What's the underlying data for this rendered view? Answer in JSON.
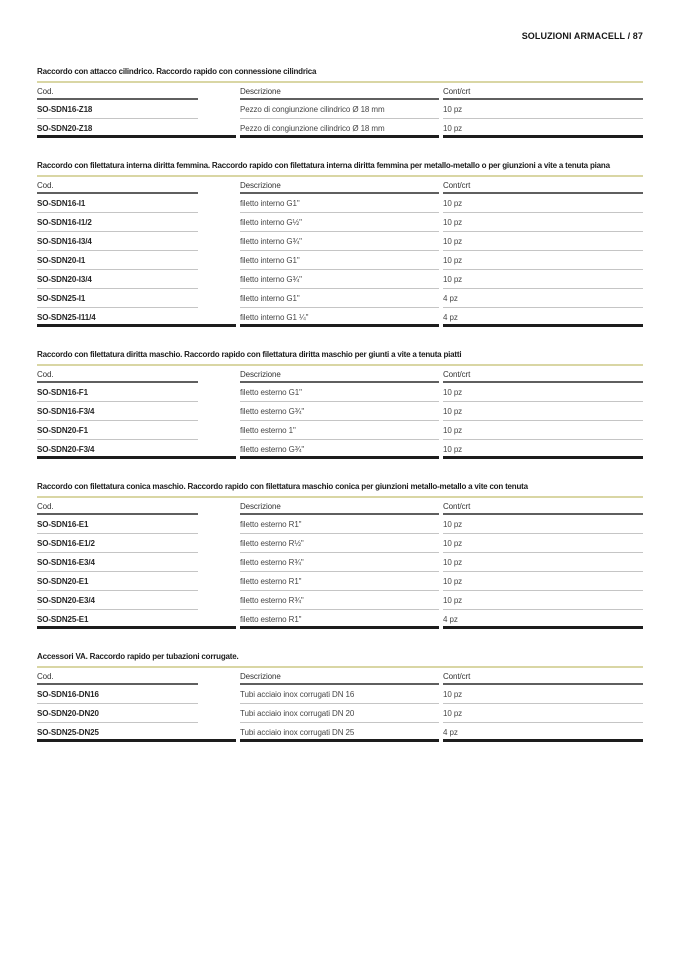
{
  "page": {
    "header": "SOLUZIONI ARMACELL / 87"
  },
  "table_headers": {
    "cod": "Cod.",
    "desc": "Descrizione",
    "qty": "Cont/crt"
  },
  "colors": {
    "accent_line": "#d9d6a4",
    "header_rule": "#5f5f5f",
    "row_rule": "#c5c5c5",
    "table_bottom_rule": "#1d1d1d",
    "text": "#1e1e1e"
  },
  "sections": [
    {
      "title": "Raccordo con attacco cilindrico. Raccordo rapido con connessione cilindrica",
      "rows": [
        {
          "cod": "SO-SDN16-Z18",
          "desc": "Pezzo di congiunzione cilindrico Ø 18 mm",
          "qty": "10 pz"
        },
        {
          "cod": "SO-SDN20-Z18",
          "desc": "Pezzo di congiunzione cilindrico Ø 18 mm",
          "qty": "10 pz"
        }
      ]
    },
    {
      "title": "Raccordo con filettatura interna diritta femmina. Raccordo rapido con filettatura interna diritta femmina per metallo-metallo o per giunzioni a vite a tenuta piana",
      "rows": [
        {
          "cod": "SO-SDN16-I1",
          "desc": "filetto interno G1\"",
          "qty": "10 pz"
        },
        {
          "cod": "SO-SDN16-I1/2",
          "desc": "filetto interno G½\"",
          "qty": "10 pz"
        },
        {
          "cod": "SO-SDN16-I3/4",
          "desc": "filetto interno G¾\"",
          "qty": "10 pz"
        },
        {
          "cod": "SO-SDN20-I1",
          "desc": "filetto interno G1\"",
          "qty": "10 pz"
        },
        {
          "cod": "SO-SDN20-I3/4",
          "desc": "filetto interno G¾\"",
          "qty": "10 pz"
        },
        {
          "cod": "SO-SDN25-I1",
          "desc": "filetto interno G1\"",
          "qty": "4 pz"
        },
        {
          "cod": "SO-SDN25-I11/4",
          "desc": "filetto interno G1 ¼\"",
          "qty": "4 pz"
        }
      ]
    },
    {
      "title": "Raccordo con filettatura diritta maschio. Raccordo rapido con filettatura diritta maschio per giunti a vite a tenuta piatti",
      "rows": [
        {
          "cod": "SO-SDN16-F1",
          "desc": "filetto esterno G1\"",
          "qty": "10 pz"
        },
        {
          "cod": "SO-SDN16-F3/4",
          "desc": "filetto esterno G¾\"",
          "qty": "10 pz"
        },
        {
          "cod": "SO-SDN20-F1",
          "desc": "filetto esterno 1\"",
          "qty": "10 pz"
        },
        {
          "cod": "SO-SDN20-F3/4",
          "desc": "filetto esterno G¾\"",
          "qty": "10 pz"
        }
      ]
    },
    {
      "title": "Raccordo con filettatura conica maschio. Raccordo rapido con filettatura maschio conica per giunzioni metallo-metallo a vite con tenuta",
      "rows": [
        {
          "cod": "SO-SDN16-E1",
          "desc": "filetto esterno R1\"",
          "qty": "10 pz"
        },
        {
          "cod": "SO-SDN16-E1/2",
          "desc": "filetto esterno R½\"",
          "qty": "10 pz"
        },
        {
          "cod": "SO-SDN16-E3/4",
          "desc": "filetto esterno R¾\"",
          "qty": "10 pz"
        },
        {
          "cod": "SO-SDN20-E1",
          "desc": "filetto esterno R1\"",
          "qty": "10 pz"
        },
        {
          "cod": "SO-SDN20-E3/4",
          "desc": "filetto esterno R¾\"",
          "qty": "10 pz"
        },
        {
          "cod": "SO-SDN25-E1",
          "desc": "filetto esterno R1\"",
          "qty": "4 pz"
        }
      ]
    },
    {
      "title": "Accessori VA. Raccordo rapido per tubazioni corrugate.",
      "rows": [
        {
          "cod": "SO-SDN16-DN16",
          "desc": "Tubi acciaio inox corrugati DN 16",
          "qty": "10 pz"
        },
        {
          "cod": "SO-SDN20-DN20",
          "desc": "Tubi acciaio inox corrugati DN 20",
          "qty": "10 pz"
        },
        {
          "cod": "SO-SDN25-DN25",
          "desc": "Tubi acciaio inox corrugati DN 25",
          "qty": "4 pz"
        }
      ]
    }
  ]
}
